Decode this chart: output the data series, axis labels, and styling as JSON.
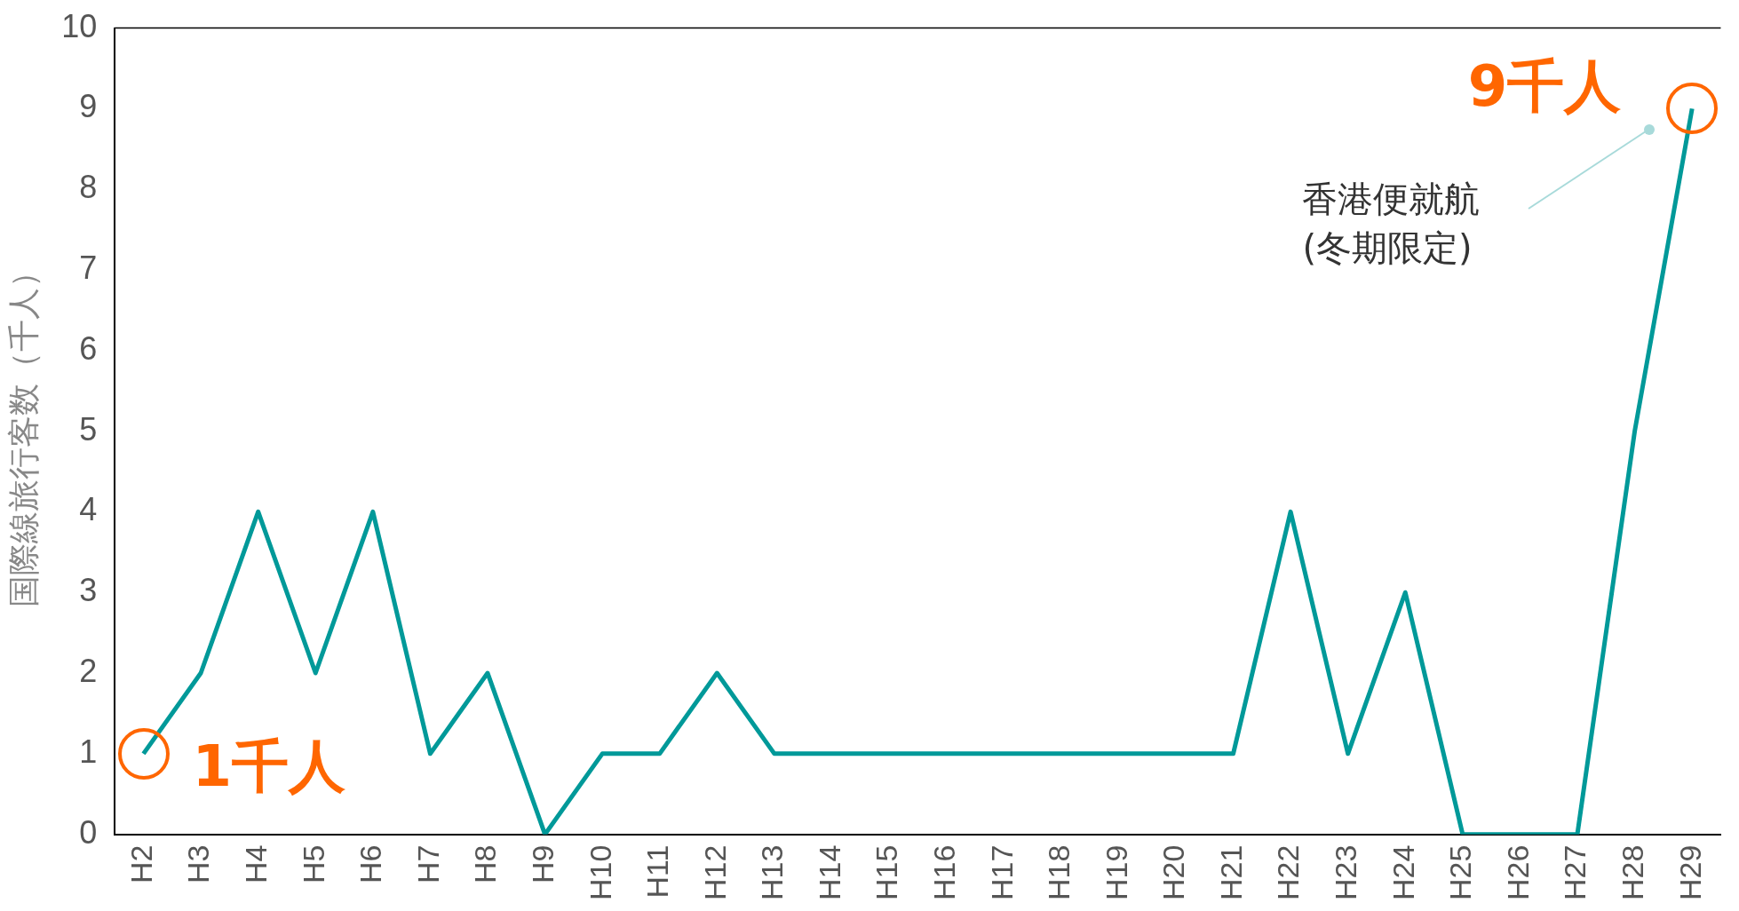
{
  "chart_data": {
    "type": "line",
    "ylabel": "国際線旅行客数（千人）",
    "categories": [
      "H2",
      "H3",
      "H4",
      "H5",
      "H6",
      "H7",
      "H8",
      "H9",
      "H10",
      "H11",
      "H12",
      "H13",
      "H14",
      "H15",
      "H16",
      "H17",
      "H18",
      "H19",
      "H20",
      "H21",
      "H22",
      "H23",
      "H24",
      "H25",
      "H26",
      "H27",
      "H28",
      "H29"
    ],
    "series": [
      {
        "color": "#009999",
        "values": [
          1,
          2,
          4,
          2,
          4,
          1,
          2,
          0,
          1,
          1,
          2,
          1,
          1,
          1,
          1,
          1,
          1,
          1,
          1,
          1,
          4,
          1,
          3,
          0,
          0,
          0,
          5,
          9
        ]
      }
    ],
    "ylim": [
      0,
      10
    ],
    "yticks": [
      0,
      1,
      2,
      3,
      4,
      5,
      6,
      7,
      8,
      9,
      10
    ],
    "grid": false,
    "legend": false,
    "marker": "none",
    "line_style": "solid",
    "annotations": [
      {
        "text": "1千人",
        "x": "H2",
        "y": 1
      },
      {
        "text": "9千人",
        "x": "H29",
        "y": 9
      },
      "香港便就航\n(冬期限定)"
    ]
  }
}
